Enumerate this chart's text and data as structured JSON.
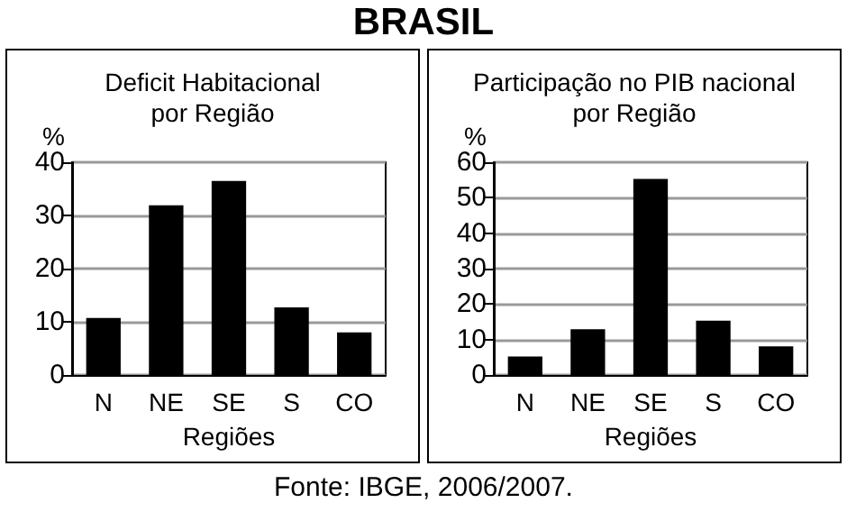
{
  "chart_data": [
    {
      "type": "bar",
      "title": "Deficit Habitacional\npor Região",
      "xlabel": "Regiões",
      "ylabel": "%",
      "categories": [
        "N",
        "NE",
        "SE",
        "S",
        "CO"
      ],
      "values": [
        10.7,
        31.9,
        36.5,
        12.7,
        8.0
      ],
      "color": "#000000",
      "ylim": [
        0,
        40
      ],
      "yticks": [
        0,
        10,
        20,
        30,
        40
      ],
      "grid": "y",
      "annotations": [
        "BRASIL"
      ]
    },
    {
      "type": "bar",
      "title": "Participação no PIB nacional\npor Região",
      "xlabel": "Regiões",
      "ylabel": "%",
      "categories": [
        "N",
        "NE",
        "SE",
        "S",
        "CO"
      ],
      "values": [
        5.2,
        12.9,
        55.3,
        15.3,
        8.1
      ],
      "color": "#000000",
      "ylim": [
        0,
        60
      ],
      "yticks": [
        0,
        10,
        20,
        30,
        40,
        50,
        60
      ],
      "grid": "y",
      "annotations": [
        "Fonte: IBGE, 2006/2007."
      ]
    }
  ]
}
